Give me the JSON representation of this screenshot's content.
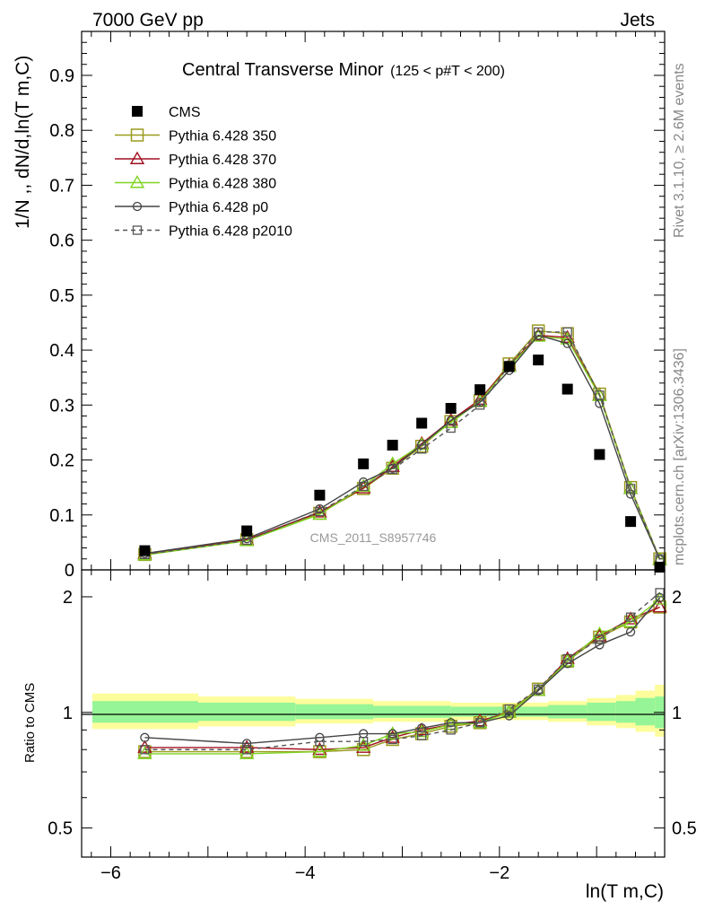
{
  "header": {
    "left": "7000 GeV pp",
    "right": "Jets"
  },
  "side_labels": {
    "rivet": "Rivet 3.1.10, ≥ 2.6M events",
    "mcplots": "mcplots.cern.ch [arXiv:1306.3436]"
  },
  "watermark": "CMS_2011_S8957746",
  "chart_data": [
    {
      "type": "scatter",
      "title": "Central Transverse Minor",
      "title_sub": "(125 < p#T < 200)",
      "ylabel": "1/N ,, dN/d,ln(T m,C)",
      "ylim": [
        0,
        0.98
      ],
      "yticks": [
        0,
        0.1,
        0.2,
        0.3,
        0.4,
        0.5,
        0.6,
        0.7,
        0.8,
        0.9
      ],
      "ytick_labels": [
        "0",
        "0.1",
        "0.2",
        "0.3",
        "0.4",
        "0.5",
        "0.6",
        "0.7",
        "0.8",
        "0.9"
      ],
      "xlim": [
        -6.3,
        -0.3
      ],
      "legend_position": "top-left",
      "x": [
        -5.65,
        -4.6,
        -3.85,
        -3.4,
        -3.1,
        -2.8,
        -2.5,
        -2.2,
        -1.9,
        -1.6,
        -1.3,
        -0.97,
        -0.65,
        -0.35
      ],
      "series": [
        {
          "name": "CMS",
          "color": "#000000",
          "marker": "filled-square",
          "line": "none",
          "values": [
            0.035,
            0.071,
            0.136,
            0.193,
            0.227,
            0.267,
            0.294,
            0.328,
            0.37,
            0.382,
            0.329,
            0.21,
            0.088,
            0.005
          ]
        },
        {
          "name": "Pythia 6.428 350",
          "color": "#9a9a1f",
          "marker": "open-square",
          "line": "solid",
          "values": [
            0.028,
            0.055,
            0.103,
            0.148,
            0.185,
            0.225,
            0.27,
            0.308,
            0.375,
            0.435,
            0.43,
            0.32,
            0.15,
            0.02
          ]
        },
        {
          "name": "Pythia 6.428 370",
          "color": "#a01020",
          "marker": "open-triangle",
          "line": "solid",
          "values": [
            0.029,
            0.055,
            0.105,
            0.149,
            0.188,
            0.23,
            0.272,
            0.31,
            0.372,
            0.427,
            0.423,
            0.318,
            0.148,
            0.019
          ]
        },
        {
          "name": "Pythia 6.428 380",
          "color": "#7ed321",
          "marker": "open-triangle",
          "line": "solid",
          "values": [
            0.027,
            0.053,
            0.101,
            0.152,
            0.193,
            0.228,
            0.268,
            0.307,
            0.37,
            0.425,
            0.42,
            0.317,
            0.148,
            0.019
          ]
        },
        {
          "name": "Pythia 6.428 p0",
          "color": "#444444",
          "marker": "open-circle",
          "line": "solid",
          "values": [
            0.03,
            0.057,
            0.111,
            0.16,
            0.185,
            0.228,
            0.272,
            0.305,
            0.363,
            0.427,
            0.412,
            0.303,
            0.138,
            0.019
          ]
        },
        {
          "name": "Pythia 6.428 p2010",
          "color": "#555555",
          "marker": "open-square-small",
          "line": "dashed",
          "values": [
            0.028,
            0.054,
            0.106,
            0.152,
            0.183,
            0.22,
            0.258,
            0.3,
            0.372,
            0.433,
            0.433,
            0.318,
            0.148,
            0.02
          ]
        }
      ]
    },
    {
      "type": "line",
      "ylabel": "Ratio to CMS",
      "yscale": "log",
      "ylim": [
        0.42,
        2.35
      ],
      "yticks": [
        0.5,
        1,
        2
      ],
      "ytick_labels": [
        "0.5",
        "1",
        "2"
      ],
      "xlim": [
        -6.3,
        -0.3
      ],
      "xticks": [
        -6,
        -4,
        -2
      ],
      "xtick_labels": [
        "−6",
        "−4",
        "−2"
      ],
      "xlabel": "ln(T m,C)",
      "x": [
        -5.65,
        -4.6,
        -3.85,
        -3.4,
        -3.1,
        -2.8,
        -2.5,
        -2.2,
        -1.9,
        -1.6,
        -1.3,
        -0.97,
        -0.65,
        -0.35
      ],
      "band_edges": [
        -6.3,
        -5.1,
        -4.1,
        -3.3,
        -2.5,
        -1.5,
        -1.1,
        -0.8,
        -0.6,
        -0.4,
        -0.3
      ],
      "band_yellow": [
        [
          0.905,
          1.12
        ],
        [
          0.92,
          1.1
        ],
        [
          0.935,
          1.085
        ],
        [
          0.945,
          1.07
        ],
        [
          0.955,
          1.06
        ],
        [
          0.945,
          1.07
        ],
        [
          0.925,
          1.09
        ],
        [
          0.91,
          1.11
        ],
        [
          0.89,
          1.14
        ],
        [
          0.865,
          1.18
        ]
      ],
      "band_green": [
        [
          0.94,
          1.07
        ],
        [
          0.95,
          1.06
        ],
        [
          0.96,
          1.05
        ],
        [
          0.968,
          1.04
        ],
        [
          0.975,
          1.035
        ],
        [
          0.965,
          1.045
        ],
        [
          0.95,
          1.06
        ],
        [
          0.94,
          1.07
        ],
        [
          0.925,
          1.09
        ],
        [
          0.91,
          1.1
        ]
      ],
      "series": [
        {
          "name": "Pythia 6.428 350",
          "color": "#9a9a1f",
          "marker": "open-square",
          "line": "solid",
          "values": [
            0.79,
            0.79,
            0.79,
            0.8,
            0.85,
            0.88,
            0.92,
            0.94,
            1.01,
            1.15,
            1.36,
            1.57,
            1.72,
            1.88
          ]
        },
        {
          "name": "Pythia 6.428 370",
          "color": "#a01020",
          "marker": "open-triangle",
          "line": "solid",
          "values": [
            0.81,
            0.81,
            0.8,
            0.81,
            0.86,
            0.9,
            0.93,
            0.95,
            1.0,
            1.14,
            1.38,
            1.58,
            1.75,
            1.88
          ]
        },
        {
          "name": "Pythia 6.428 380",
          "color": "#7ed321",
          "marker": "open-triangle",
          "line": "solid",
          "values": [
            0.78,
            0.78,
            0.79,
            0.82,
            0.88,
            0.89,
            0.93,
            0.94,
            1.0,
            1.14,
            1.36,
            1.6,
            1.72,
            1.97
          ]
        },
        {
          "name": "Pythia 6.428 p0",
          "color": "#444444",
          "marker": "open-circle",
          "line": "solid",
          "values": [
            0.86,
            0.83,
            0.86,
            0.88,
            0.88,
            0.91,
            0.94,
            0.94,
            0.98,
            1.14,
            1.34,
            1.5,
            1.62,
            1.99
          ]
        },
        {
          "name": "Pythia 6.428 p2010",
          "color": "#555555",
          "marker": "open-square-small",
          "line": "dashed",
          "values": [
            0.8,
            0.8,
            0.84,
            0.84,
            0.85,
            0.87,
            0.9,
            0.94,
            1.02,
            1.15,
            1.38,
            1.55,
            1.77,
            2.05
          ]
        }
      ]
    }
  ]
}
